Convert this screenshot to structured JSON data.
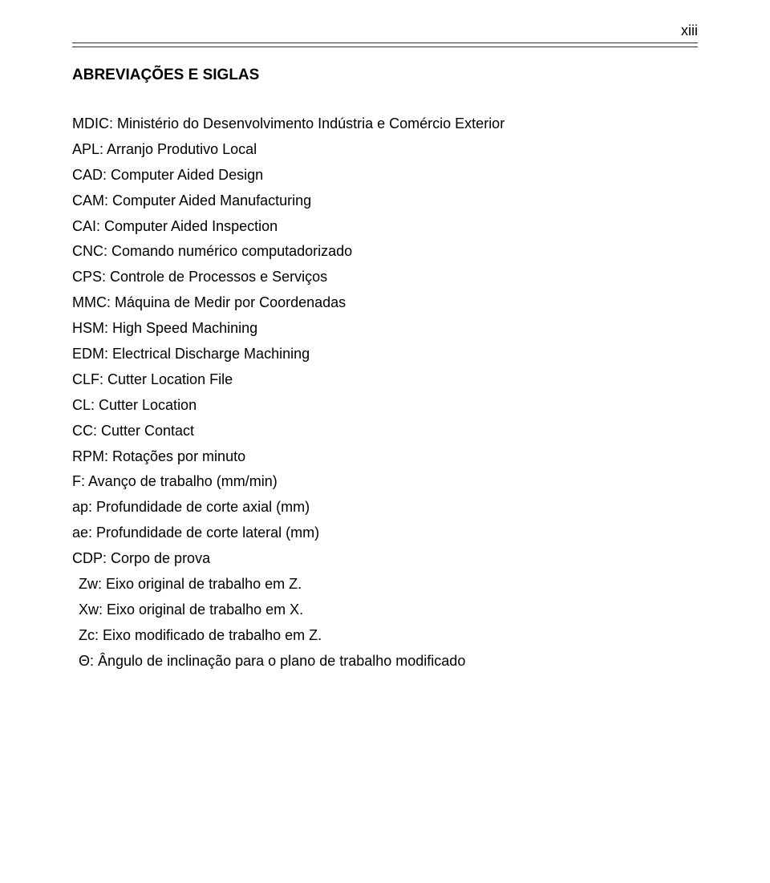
{
  "page_number": "xiii",
  "section_title": "ABREVIAÇÕES E SIGLAS",
  "entries": [
    "MDIC: Ministério do Desenvolvimento Indústria e Comércio Exterior",
    "APL: Arranjo Produtivo Local",
    "CAD: Computer Aided Design",
    "CAM: Computer Aided Manufacturing",
    "CAI: Computer Aided Inspection",
    "CNC: Comando numérico computadorizado",
    "CPS: Controle de Processos e Serviços",
    "MMC: Máquina de Medir por Coordenadas",
    "HSM: High Speed Machining",
    "EDM: Electrical Discharge Machining",
    "CLF: Cutter Location File",
    "CL: Cutter Location",
    "CC: Cutter Contact",
    "RPM: Rotações por minuto",
    "F: Avanço de trabalho (mm/min)",
    "ap: Profundidade de corte axial (mm)",
    "ae: Profundidade de corte lateral (mm)",
    "CDP: Corpo de prova"
  ],
  "indented_entries": [
    "Zw: Eixo original de trabalho em Z.",
    "Xw: Eixo original de trabalho em X.",
    "Zc: Eixo modificado de trabalho em Z.",
    "Θ: Ângulo de inclinação para o plano de trabalho modificado"
  ]
}
